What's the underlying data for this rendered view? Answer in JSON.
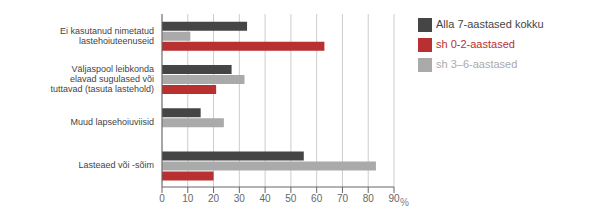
{
  "chart_data": {
    "type": "bar",
    "orientation": "horizontal",
    "categories": [
      "Lasteaed või -sõim",
      "Muud lapsehoiuviisid",
      "Väljaspool leibkonda\nelavad sugulased või\ntuttavad (tasuta lastehold)",
      "Ei kasutanud nimetatud\nlastehoiuteenuseid"
    ],
    "series": [
      {
        "name": "Alla 7-aastased kokku",
        "color": "#454545",
        "values": [
          55,
          15,
          27,
          33
        ]
      },
      {
        "name": "sh 3–6-aastased",
        "color": "#aaaaaa",
        "values": [
          83,
          24,
          32,
          11
        ]
      },
      {
        "name": "sh 0-2-aastased",
        "color": "#b83030",
        "values": [
          20,
          0,
          21,
          63
        ]
      }
    ],
    "xlim": [
      0,
      90
    ],
    "xticks": [
      0,
      10,
      20,
      30,
      40,
      50,
      60,
      70,
      80,
      90
    ],
    "xlabel": "%",
    "grid": true,
    "legend": "upper right"
  }
}
